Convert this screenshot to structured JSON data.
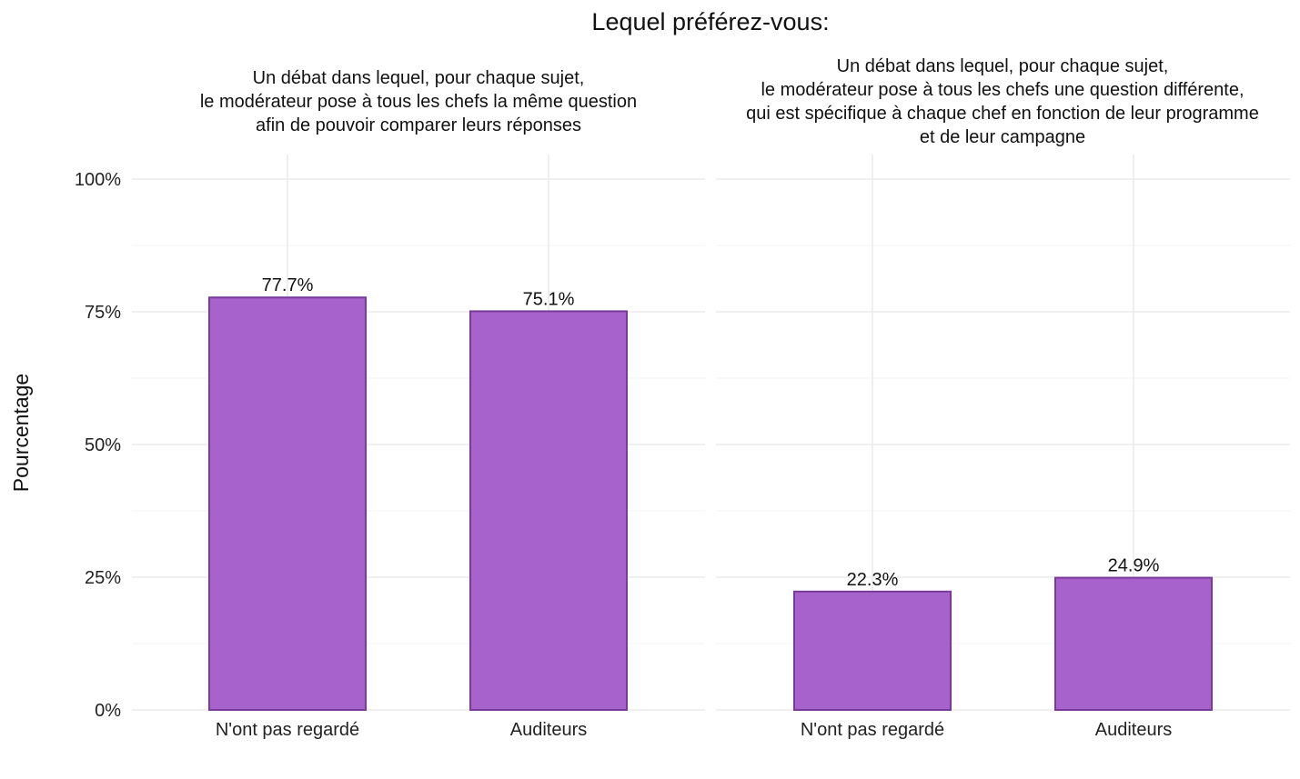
{
  "chart_data": [
    {
      "type": "bar",
      "title": "Lequel préférez-vous:",
      "ylabel": "Pourcentage",
      "ylim": [
        0,
        100
      ],
      "yticks": [
        "0%",
        "25%",
        "50%",
        "75%",
        "100%"
      ],
      "grid": true,
      "bar_color": "#a862cb",
      "bar_border": "#7a3a9a",
      "panels": [
        {
          "facet_title": [
            "Un débat dans lequel, pour chaque sujet,",
            "le modérateur pose à tous les chefs la même question",
            "afin de pouvoir comparer leurs réponses"
          ],
          "categories": [
            "N'ont pas regardé",
            "Auditeurs"
          ],
          "values": [
            77.7,
            75.1
          ],
          "labels": [
            "77.7%",
            "75.1%"
          ]
        },
        {
          "facet_title": [
            "Un débat dans lequel, pour chaque sujet,",
            "le modérateur pose à tous les chefs une question différente,",
            "qui est spécifique à chaque chef en fonction de leur programme",
            "et de leur campagne"
          ],
          "categories": [
            "N'ont pas regardé",
            "Auditeurs"
          ],
          "values": [
            22.3,
            24.9
          ],
          "labels": [
            "22.3%",
            "24.9%"
          ]
        }
      ]
    }
  ]
}
